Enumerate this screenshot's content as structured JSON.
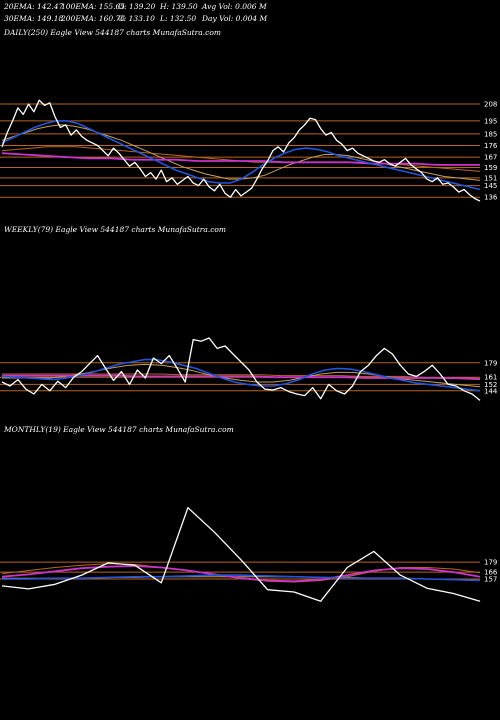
{
  "header": {
    "ema20": "20EMA: 142.47",
    "ema100": "100EMA: 155.65",
    "open": "O: 139.20",
    "high": "H: 139.50",
    "avgvol": "Avg Vol: 0.006  M",
    "ema30": "30EMA: 149.18",
    "ema200": "200EMA: 160.76",
    "close": "C: 133.10",
    "low": "L: 132.50",
    "dayvol": "Day Vol: 0.004  M"
  },
  "colors": {
    "background": "#000000",
    "price": "#ffffff",
    "ema_short": "#2255dd",
    "ema_long": "#cc33cc",
    "levels": "#b8651e",
    "ma_mid": "#c0a060"
  },
  "chart_data": [
    {
      "type": "line",
      "title": "DAILY(250) Eagle   View  544187 charts MunafaSutra.com",
      "ylim": [
        130,
        215
      ],
      "levels": [
        208,
        195,
        185,
        176,
        167,
        159,
        151,
        145,
        136
      ],
      "level_labels": [
        "208",
        "195",
        "185",
        "176",
        "167",
        "159",
        "151",
        "145",
        "136"
      ],
      "series": [
        {
          "role": "price",
          "values": [
            175,
            186,
            195,
            205,
            200,
            208,
            202,
            211,
            207,
            209,
            198,
            190,
            192,
            184,
            188,
            183,
            180,
            178,
            176,
            172,
            168,
            174,
            170,
            165,
            160,
            163,
            158,
            152,
            155,
            150,
            157,
            148,
            151,
            146,
            149,
            152,
            147,
            145,
            150,
            144,
            141,
            146,
            139,
            136,
            142,
            137,
            140,
            143,
            150,
            158,
            164,
            172,
            175,
            171,
            178,
            182,
            188,
            192,
            197,
            196,
            189,
            184,
            186,
            180,
            177,
            172,
            174,
            170,
            168,
            166,
            164,
            163,
            165,
            162,
            160,
            163,
            166,
            161,
            158,
            155,
            150,
            148,
            151,
            146,
            147,
            144,
            140,
            142,
            138,
            135,
            133
          ]
        },
        {
          "role": "ema20",
          "values": [
            178,
            182,
            186,
            190,
            193,
            195,
            195,
            193,
            189,
            185,
            181,
            177,
            173,
            169,
            165,
            161,
            157,
            154,
            151,
            148,
            147,
            147,
            150,
            155,
            161,
            166,
            170,
            173,
            174,
            173,
            171,
            168,
            166,
            164,
            162,
            160,
            158,
            156,
            154,
            152,
            150,
            148,
            146,
            144,
            142
          ]
        },
        {
          "role": "ema30",
          "values": [
            180,
            183,
            186,
            189,
            191,
            192,
            191,
            189,
            186,
            183,
            180,
            176,
            172,
            168,
            164,
            160,
            157,
            154,
            152,
            150,
            150,
            151,
            153,
            157,
            161,
            164,
            167,
            169,
            169,
            168,
            166,
            164,
            162,
            160,
            158,
            156,
            154,
            152,
            151,
            150,
            149
          ]
        },
        {
          "role": "ema100",
          "values": [
            172,
            173,
            174,
            175,
            175,
            175,
            174,
            173,
            172,
            171,
            170,
            169,
            168,
            167,
            166,
            165,
            164,
            163,
            163,
            163,
            163,
            163,
            163,
            163,
            163,
            162,
            162,
            161,
            160,
            159,
            158,
            157,
            156
          ]
        },
        {
          "role": "ema200",
          "values": [
            170,
            169,
            168,
            167,
            166,
            166,
            165,
            165,
            165,
            164,
            164,
            164,
            164,
            163,
            163,
            163,
            163,
            162,
            162,
            162,
            161,
            161,
            161
          ]
        }
      ]
    },
    {
      "type": "line",
      "title": "WEEKLY(79) Eagle   View  544187 charts MunafaSutra.com",
      "ylim": [
        120,
        260
      ],
      "levels": [
        179,
        161,
        152,
        144
      ],
      "level_labels": [
        "179",
        "161",
        "152",
        "144"
      ],
      "series": [
        {
          "role": "price",
          "values": [
            155,
            150,
            158,
            146,
            140,
            152,
            144,
            156,
            148,
            161,
            168,
            178,
            188,
            172,
            157,
            168,
            152,
            170,
            160,
            185,
            178,
            188,
            172,
            155,
            208,
            206,
            210,
            197,
            200,
            190,
            180,
            170,
            155,
            146,
            145,
            148,
            143,
            140,
            138,
            148,
            134,
            152,
            144,
            140,
            150,
            168,
            176,
            188,
            197,
            190,
            176,
            165,
            162,
            168,
            176,
            165,
            152,
            150,
            144,
            140,
            132
          ]
        },
        {
          "role": "ema20",
          "values": [
            162,
            161,
            160,
            159,
            158,
            160,
            163,
            167,
            172,
            177,
            180,
            183,
            183,
            180,
            176,
            172,
            166,
            160,
            155,
            152,
            150,
            150,
            153,
            158,
            165,
            170,
            172,
            171,
            168,
            164,
            160,
            157,
            154,
            152,
            150,
            148,
            146,
            144
          ]
        },
        {
          "role": "ema30",
          "values": [
            160,
            160,
            160,
            160,
            162,
            165,
            169,
            173,
            176,
            177,
            176,
            173,
            169,
            164,
            160,
            157,
            155,
            155,
            157,
            161,
            165,
            167,
            167,
            165,
            162,
            159,
            157,
            155,
            153,
            151,
            149
          ]
        },
        {
          "role": "ema100",
          "values": [
            165,
            165,
            165,
            165,
            165,
            165,
            165,
            165,
            165,
            164,
            164,
            164,
            164,
            164,
            163,
            163,
            163,
            163,
            162,
            162,
            162,
            161,
            160,
            159,
            158
          ]
        },
        {
          "role": "ema200",
          "values": [
            163,
            163,
            163,
            163,
            163,
            163,
            162,
            162,
            162,
            162,
            162,
            162,
            161,
            161,
            161,
            161,
            160,
            160,
            160,
            160,
            160,
            159
          ]
        }
      ]
    },
    {
      "type": "line",
      "title": "MONTHLY(19) Eagle   View  544187 charts MunafaSutra.com",
      "ylim": [
        110,
        260
      ],
      "levels": [
        179,
        166,
        157
      ],
      "level_labels": [
        "179",
        "166",
        "157"
      ],
      "series": [
        {
          "role": "price",
          "values": [
            148,
            144,
            150,
            162,
            178,
            175,
            152,
            250,
            218,
            182,
            143,
            140,
            128,
            172,
            193,
            162,
            145,
            138,
            128
          ]
        },
        {
          "role": "ema20",
          "values": [
            157,
            157,
            158,
            158,
            159,
            160,
            160,
            161,
            162,
            162,
            161,
            160,
            159,
            158,
            158,
            158,
            157,
            156,
            155
          ]
        },
        {
          "role": "ema30",
          "values": [
            158,
            158,
            158,
            158,
            159,
            159,
            160,
            160,
            160,
            160,
            160,
            160,
            159,
            159,
            158,
            158,
            157,
            156,
            155
          ]
        },
        {
          "role": "ema100",
          "values": [
            164,
            168,
            172,
            175,
            177,
            176,
            172,
            168,
            163,
            158,
            154,
            153,
            155,
            160,
            167,
            172,
            172,
            170,
            165
          ]
        },
        {
          "role": "ema200",
          "values": [
            160,
            163,
            167,
            171,
            173,
            174,
            172,
            168,
            163,
            158,
            155,
            154,
            156,
            162,
            168,
            171,
            170,
            166,
            160
          ]
        }
      ]
    }
  ]
}
